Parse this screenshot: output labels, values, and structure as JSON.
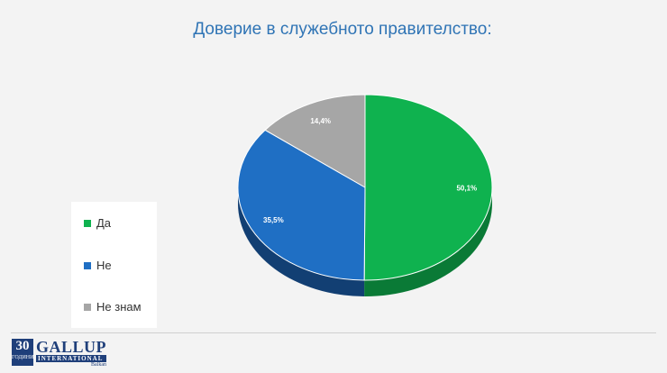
{
  "title": "Доверие в служебното правителство:",
  "chart_data": {
    "type": "pie",
    "title": "Доверие в служебното правителство:",
    "categories": [
      "Да",
      "Не",
      "Не знам"
    ],
    "values": [
      50.1,
      35.5,
      14.4
    ],
    "data_labels": [
      "50,1%",
      "35,5%",
      "14,4%"
    ],
    "colors": [
      "#0fb24f",
      "#1f6fc4",
      "#a6a6a6"
    ],
    "side_colors": [
      "#0a7a36",
      "#123f73",
      "#6e6e6e"
    ],
    "legend_position": "left"
  },
  "legend": [
    {
      "label": "Да",
      "color": "#0fb24f"
    },
    {
      "label": "Не",
      "color": "#1f6fc4"
    },
    {
      "label": "Не знам",
      "color": "#a6a6a6"
    }
  ],
  "logo": {
    "years_number": "30",
    "years_caption": "ГОДИНИ",
    "brand": "GALLUP",
    "brand_sub": "INTERNATIONAL",
    "region": "Balkan"
  }
}
